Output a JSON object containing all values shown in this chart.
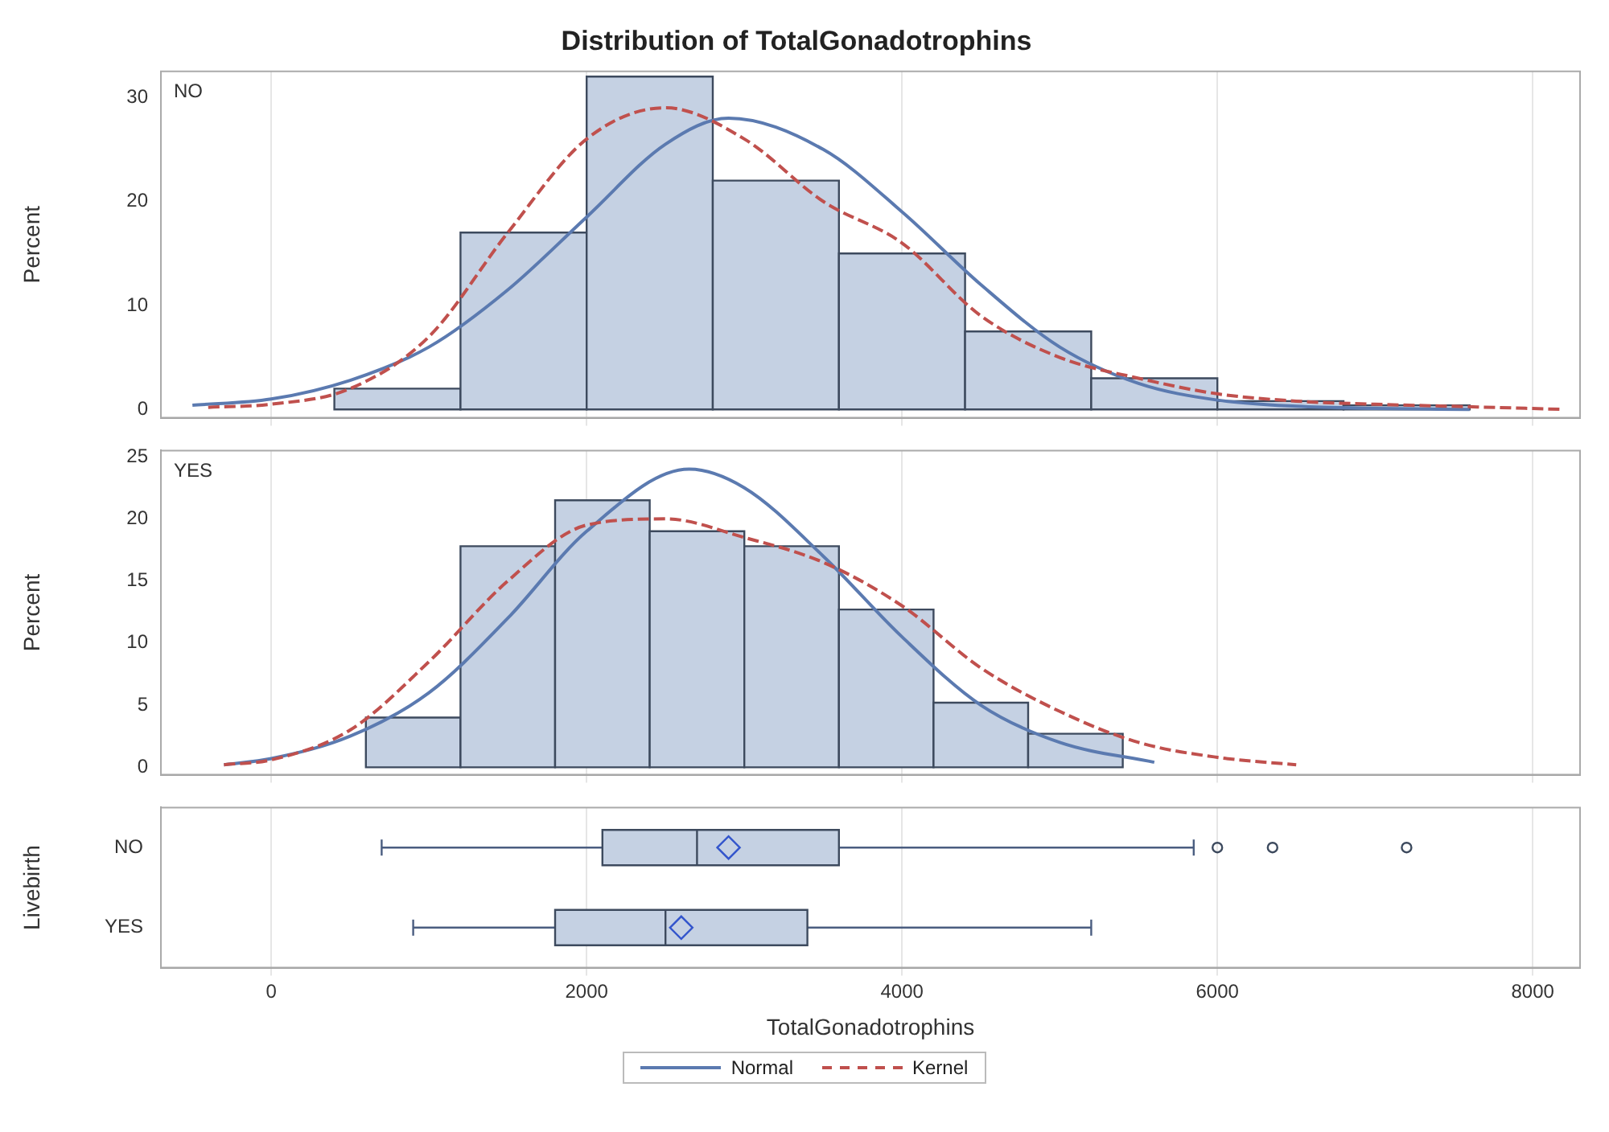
{
  "chart_data": [
    {
      "type": "histogram",
      "title": "Distribution of TotalGonadotrophins",
      "ylabel": "Percent",
      "annotations": [
        "NO"
      ],
      "bins": [
        400,
        1200,
        2000,
        2800,
        3600,
        4400,
        5200,
        6000,
        6800,
        7600
      ],
      "values": [
        2,
        17,
        32,
        22,
        15,
        7.5,
        3,
        0.8,
        0.4
      ],
      "color": "#c5d1e3",
      "series": [
        {
          "type": "line",
          "color": "#5b7ab0",
          "line_style": "solid",
          "x": [
            -500,
            0,
            500,
            1000,
            1500,
            2000,
            2500,
            2900,
            3500,
            4000,
            4500,
            5000,
            5500,
            6000,
            6500,
            7000,
            7600
          ],
          "values": [
            0.4,
            1,
            2.8,
            6,
            11.5,
            18.5,
            25.5,
            28,
            25,
            19,
            12,
            6,
            2.5,
            0.9,
            0.3,
            0.1,
            0
          ]
        },
        {
          "type": "line",
          "color": "#c0504d",
          "line_style": "dashed",
          "x": [
            -400,
            0,
            500,
            1000,
            1500,
            2000,
            2500,
            3000,
            3500,
            4000,
            4500,
            5000,
            5500,
            6000,
            6500,
            7000,
            7500,
            8200
          ],
          "values": [
            0.2,
            0.5,
            2,
            7,
            17,
            26,
            29,
            26,
            20,
            16,
            9,
            5,
            3,
            1.5,
            0.8,
            0.5,
            0.3,
            0
          ]
        }
      ],
      "xlim": [
        -700,
        8300
      ],
      "xticks": [
        0,
        2000,
        4000,
        6000,
        8000
      ],
      "ylim": [
        -0.8,
        32.5
      ],
      "yticks": [
        0,
        10,
        20,
        30
      ],
      "tick_labels": "y",
      "grid": "x",
      "marker": "none"
    },
    {
      "type": "histogram",
      "ylabel": "Percent",
      "annotations": [
        "YES"
      ],
      "bins": [
        600,
        1200,
        1800,
        2400,
        3000,
        3600,
        4200,
        4800,
        5400
      ],
      "values": [
        4,
        17.8,
        21.5,
        19,
        17.8,
        12.7,
        5.2,
        2.7
      ],
      "color": "#c5d1e3",
      "series": [
        {
          "name": "Normal",
          "type": "line",
          "color": "#5b7ab0",
          "line_style": "solid",
          "x": [
            -300,
            0,
            500,
            1000,
            1500,
            2000,
            2650,
            3000,
            3500,
            4000,
            4500,
            5000,
            5600
          ],
          "values": [
            0.2,
            0.7,
            2.5,
            6,
            12,
            19,
            24,
            22.5,
            17,
            10.5,
            5,
            2,
            0.4
          ]
        },
        {
          "name": "Kernel",
          "type": "line",
          "color": "#c0504d",
          "line_style": "dashed",
          "x": [
            -300,
            0,
            500,
            1000,
            1500,
            2000,
            2500,
            3000,
            3500,
            4000,
            4500,
            5000,
            5500,
            6000,
            6500
          ],
          "values": [
            0.2,
            0.6,
            3,
            8.5,
            15,
            19.5,
            20,
            18.5,
            16.5,
            13,
            8,
            4.5,
            2,
            0.8,
            0.2
          ]
        }
      ],
      "xlim": [
        -700,
        8300
      ],
      "xticks": [
        0,
        2000,
        4000,
        6000,
        8000
      ],
      "ylim": [
        -0.6,
        25.5
      ],
      "yticks": [
        0,
        5,
        10,
        15,
        20,
        25
      ],
      "tick_labels": "y",
      "grid": "x",
      "marker": "none",
      "legend": "bottom"
    },
    {
      "type": "box",
      "orientation": "horizontal",
      "xlabel": "TotalGonadotrophins",
      "ylabel": "Livebirth",
      "categories": [
        "NO",
        "YES"
      ],
      "color": "#c5d1e3",
      "boxes": [
        {
          "low": 700,
          "q1": 2100,
          "median": 2700,
          "q3": 3600,
          "high": 5850,
          "mean": 2900,
          "outliers": [
            6000,
            6350,
            7200
          ]
        },
        {
          "low": 900,
          "q1": 1800,
          "median": 2500,
          "q3": 3400,
          "high": 5200,
          "mean": 2600
        }
      ],
      "xlim": [
        -700,
        8300
      ],
      "xticks": [
        0,
        2000,
        4000,
        6000,
        8000
      ],
      "grid": "x"
    }
  ]
}
